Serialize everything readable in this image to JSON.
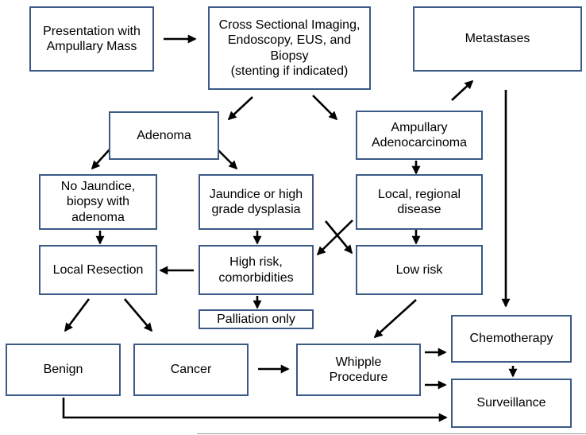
{
  "nodes": {
    "presentation": "Presentation with\nAmpullary Mass",
    "imaging": "Cross Sectional Imaging,\nEndoscopy, EUS, and\nBiopsy\n(stenting if indicated)",
    "metastases": "Metastases",
    "adenoma": "Adenoma",
    "ampullary_adenocarcinoma": "Ampullary\nAdenocarcinoma",
    "no_jaundice": "No Jaundice,\nbiopsy with\nadenoma",
    "jaundice": "Jaundice or high\ngrade dysplasia",
    "local_regional": "Local, regional\ndisease",
    "local_resection": "Local Resection",
    "high_risk": "High risk,\ncomorbidities",
    "low_risk": "Low risk",
    "palliation": "Palliation only",
    "benign": "Benign",
    "cancer": "Cancer",
    "whipple": "Whipple\nProcedure",
    "chemotherapy": "Chemotherapy",
    "surveillance": "Surveillance"
  },
  "colors": {
    "box_border": "#3b5a85",
    "arrow": "#000000"
  }
}
